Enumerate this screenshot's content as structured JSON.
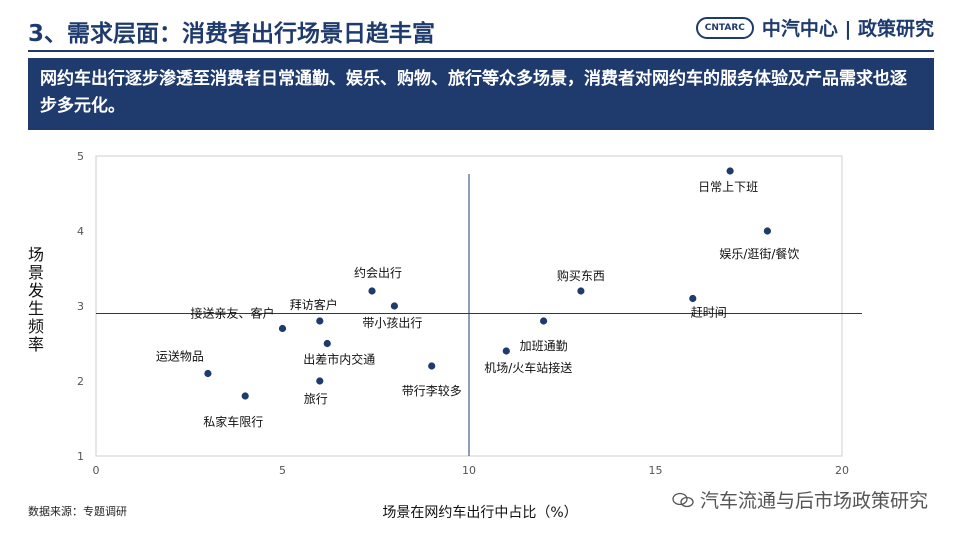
{
  "header": {
    "title": "3、需求层面：消费者出行场景日趋丰富",
    "logo_badge": "CNTARC",
    "logo_text": "中汽中心 | 政策研究"
  },
  "banner": {
    "text": "网约车出行逐步渗透至消费者日常通勤、娱乐、购物、旅行等众多场景，消费者对网约车的服务体验及产品需求也逐步多元化。"
  },
  "footer": {
    "source": "数据来源：专题调研",
    "watermark": "汽车流通与后市场政策研究"
  },
  "chart_data": {
    "type": "scatter",
    "xlabel": "场景在网约车出行中占比（%）",
    "ylabel": "场景发生频率",
    "xlim": [
      0,
      20
    ],
    "ylim": [
      1,
      5
    ],
    "xticks": [
      0,
      5,
      10,
      15,
      20
    ],
    "yticks": [
      1,
      2,
      3,
      4,
      5
    ],
    "grid": false,
    "reference_lines": {
      "x": 10,
      "y": 2.9
    },
    "point_color": "#1f3b6e",
    "points": [
      {
        "label": "日常上下班",
        "x": 17.0,
        "y": 4.8
      },
      {
        "label": "娱乐/逛街/餐饮",
        "x": 18.0,
        "y": 4.0
      },
      {
        "label": "约会出行",
        "x": 7.4,
        "y": 3.2
      },
      {
        "label": "购买东西",
        "x": 13.0,
        "y": 3.2
      },
      {
        "label": "赶时间",
        "x": 16.0,
        "y": 3.1
      },
      {
        "label": "带小孩出行",
        "x": 8.0,
        "y": 3.0
      },
      {
        "label": "拜访客户",
        "x": 6.0,
        "y": 2.8
      },
      {
        "label": "加班通勤",
        "x": 12.0,
        "y": 2.8
      },
      {
        "label": "接送亲友、客户",
        "x": 5.0,
        "y": 2.7
      },
      {
        "label": "出差市内交通",
        "x": 6.2,
        "y": 2.5
      },
      {
        "label": "机场/火车站接送",
        "x": 11.0,
        "y": 2.4
      },
      {
        "label": "带行李较多",
        "x": 9.0,
        "y": 2.2
      },
      {
        "label": "运送物品",
        "x": 3.0,
        "y": 2.1
      },
      {
        "label": "旅行",
        "x": 6.0,
        "y": 2.0
      },
      {
        "label": "私家车限行",
        "x": 4.0,
        "y": 1.8
      }
    ]
  }
}
